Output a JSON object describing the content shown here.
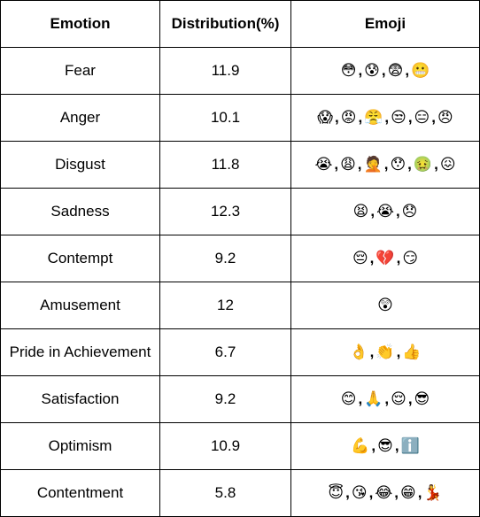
{
  "table": {
    "headers": [
      "Emotion",
      "Distribution(%)",
      "Emoji"
    ],
    "rows": [
      {
        "emotion": "Fear",
        "distribution": "11.9",
        "emojis": [
          "😳",
          "😰",
          "😨",
          "😬"
        ]
      },
      {
        "emotion": "Anger",
        "distribution": "10.1",
        "emojis": [
          "😱",
          "😡",
          "😤",
          "😒",
          "😑",
          "😠"
        ]
      },
      {
        "emotion": "Disgust",
        "distribution": "11.8",
        "emojis": [
          "😭",
          "😩",
          "🤦",
          "😯",
          "🤢",
          "😖"
        ]
      },
      {
        "emotion": "Sadness",
        "distribution": "12.3",
        "emojis": [
          "😫",
          "😭",
          "😞"
        ]
      },
      {
        "emotion": "Contempt",
        "distribution": "9.2",
        "emojis": [
          "😔",
          "💔",
          "😏"
        ]
      },
      {
        "emotion": "Amusement",
        "distribution": "12",
        "emojis": [
          "😲"
        ]
      },
      {
        "emotion": "Pride in Achievement",
        "distribution": "6.7",
        "emojis": [
          "👌",
          "👏",
          "👍"
        ]
      },
      {
        "emotion": "Satisfaction",
        "distribution": "9.2",
        "emojis": [
          "😊",
          "🙏",
          "😌",
          "😎"
        ]
      },
      {
        "emotion": "Optimism",
        "distribution": "10.9",
        "emojis": [
          "💪",
          "😎",
          "ℹ️"
        ]
      },
      {
        "emotion": "Contentment",
        "distribution": "5.8",
        "emojis": [
          "😇",
          "😘",
          "😂",
          "😁",
          "💃"
        ]
      }
    ],
    "separator": ","
  }
}
